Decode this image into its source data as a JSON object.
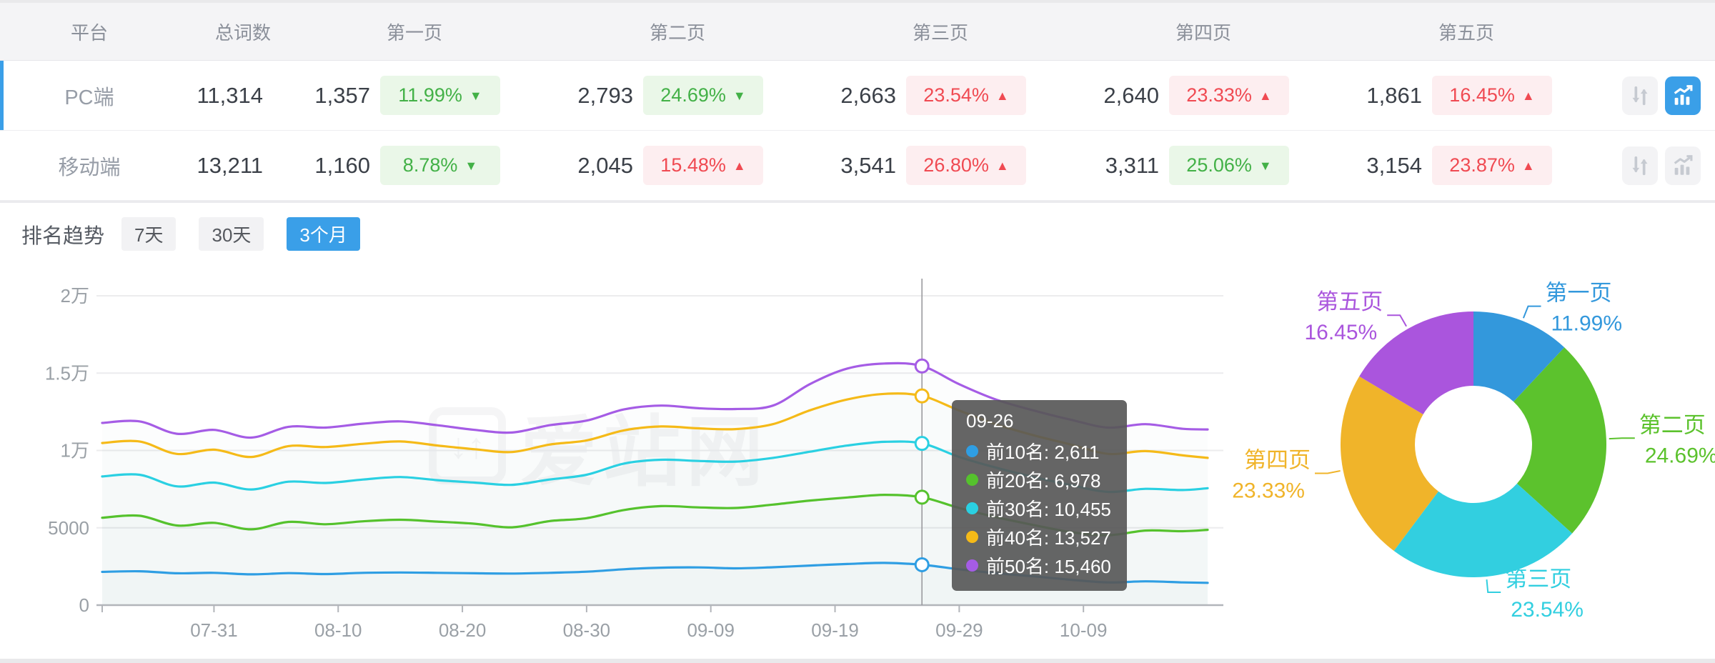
{
  "page": {
    "watermark": "爱站网"
  },
  "table": {
    "headers": [
      "平台",
      "总词数",
      "第一页",
      "第二页",
      "第三页",
      "第四页",
      "第五页"
    ],
    "rows": [
      {
        "platform": "PC端",
        "total": "11,314",
        "selected": true,
        "pages": [
          {
            "count": "1,357",
            "pct": "11.99%",
            "dir": "down"
          },
          {
            "count": "2,793",
            "pct": "24.69%",
            "dir": "down"
          },
          {
            "count": "2,663",
            "pct": "23.54%",
            "dir": "up"
          },
          {
            "count": "2,640",
            "pct": "23.33%",
            "dir": "up"
          },
          {
            "count": "1,861",
            "pct": "16.45%",
            "dir": "up"
          }
        ]
      },
      {
        "platform": "移动端",
        "total": "13,211",
        "selected": false,
        "pages": [
          {
            "count": "1,160",
            "pct": "8.78%",
            "dir": "down"
          },
          {
            "count": "2,045",
            "pct": "15.48%",
            "dir": "up"
          },
          {
            "count": "3,541",
            "pct": "26.80%",
            "dir": "up"
          },
          {
            "count": "3,311",
            "pct": "25.06%",
            "dir": "down"
          },
          {
            "count": "3,154",
            "pct": "23.87%",
            "dir": "up"
          }
        ]
      }
    ]
  },
  "trend": {
    "title": "排名趋势",
    "tabs": [
      {
        "label": "7天",
        "active": false
      },
      {
        "label": "30天",
        "active": false
      },
      {
        "label": "3个月",
        "active": true
      }
    ]
  },
  "colors": {
    "accent": "#3a9fe8",
    "up_red": "#f04a52",
    "up_red_bg": "#fdeef0",
    "down_green": "#43b147",
    "down_green_bg": "#eaf7e8",
    "axis_text": "#9aa0a6",
    "grid": "#ececee",
    "axis_line": "#b2b5ba",
    "tooltip_bg": "rgba(88,88,88,0.92)"
  },
  "tooltip": {
    "title": "09-26",
    "items": [
      {
        "name": "前10名",
        "value": "2,611",
        "color": "#2f9ee3"
      },
      {
        "name": "前20名",
        "value": "6,978",
        "color": "#55c22d"
      },
      {
        "name": "前30名",
        "value": "10,455",
        "color": "#2ad0e2"
      },
      {
        "name": "前40名",
        "value": "13,527",
        "color": "#f5ba18"
      },
      {
        "name": "前50名",
        "value": "15,460",
        "color": "#a55ce5"
      }
    ]
  },
  "chart_data": [
    {
      "type": "line",
      "title": "排名趋势（3个月）",
      "x_start_date": "07-22",
      "xlim_days": [
        0,
        89
      ],
      "x_tick_days": [
        9,
        19,
        29,
        39,
        49,
        59,
        69,
        79
      ],
      "x_tick_labels": [
        "07-31",
        "08-10",
        "08-20",
        "08-30",
        "09-09",
        "09-19",
        "09-29",
        "10-09"
      ],
      "ylim": [
        0,
        20000
      ],
      "y_tick_values": [
        0,
        5000,
        10000,
        15000,
        20000
      ],
      "y_tick_labels": [
        "0",
        "5000",
        "1万",
        "1.5万",
        "2万"
      ],
      "grid": true,
      "legend_position": "none",
      "sample_days": [
        0,
        3,
        6,
        9,
        12,
        15,
        18,
        21,
        24,
        27,
        30,
        33,
        36,
        39,
        42,
        45,
        48,
        51,
        54,
        57,
        60,
        63,
        66,
        69,
        72,
        75,
        78,
        81,
        84,
        87,
        89
      ],
      "series": [
        {
          "name": "前10名",
          "color": "#2f9ee3",
          "values": [
            2150,
            2190,
            2060,
            2090,
            1990,
            2070,
            2010,
            2090,
            2110,
            2090,
            2060,
            2040,
            2090,
            2160,
            2320,
            2420,
            2440,
            2380,
            2450,
            2560,
            2660,
            2730,
            2611,
            2320,
            2060,
            1860,
            1640,
            1470,
            1540,
            1470,
            1440
          ]
        },
        {
          "name": "前20名",
          "color": "#55c22d",
          "values": [
            5650,
            5780,
            5150,
            5320,
            4900,
            5380,
            5230,
            5420,
            5520,
            5400,
            5260,
            5030,
            5430,
            5620,
            6150,
            6400,
            6320,
            6280,
            6500,
            6760,
            6960,
            7130,
            6978,
            6280,
            5680,
            5180,
            4720,
            4520,
            4820,
            4780,
            4870
          ]
        },
        {
          "name": "前30名",
          "color": "#2ad0e2",
          "values": [
            8320,
            8430,
            7680,
            7920,
            7480,
            7980,
            7900,
            8120,
            8280,
            8080,
            7920,
            7780,
            8120,
            8430,
            9150,
            9400,
            9320,
            9280,
            9520,
            9920,
            10320,
            10560,
            10455,
            9580,
            8880,
            8280,
            7760,
            7320,
            7520,
            7440,
            7560
          ]
        },
        {
          "name": "前40名",
          "color": "#f5ba18",
          "values": [
            10480,
            10580,
            9780,
            10050,
            9580,
            10280,
            10220,
            10430,
            10580,
            10320,
            10080,
            9900,
            10380,
            10650,
            11300,
            11550,
            11430,
            11380,
            11700,
            12600,
            13300,
            13660,
            13527,
            12580,
            11680,
            10980,
            10380,
            9780,
            9960,
            9680,
            9520
          ]
        },
        {
          "name": "前50名",
          "color": "#a55ce5",
          "values": [
            11780,
            11880,
            11080,
            11330,
            10830,
            11530,
            11480,
            11730,
            11880,
            11630,
            11330,
            11160,
            11630,
            11930,
            12650,
            12900,
            12730,
            12680,
            12900,
            14300,
            15300,
            15620,
            15460,
            14280,
            13280,
            12580,
            11980,
            11480,
            11700,
            11400,
            11360
          ]
        }
      ],
      "crosshair": {
        "day": 66,
        "date": "09-26",
        "values": [
          2611,
          6978,
          10455,
          13527,
          15460
        ]
      }
    },
    {
      "type": "pie",
      "donut": true,
      "categories": [
        "第一页",
        "第二页",
        "第三页",
        "第四页",
        "第五页"
      ],
      "values": [
        11.99,
        24.69,
        23.54,
        23.33,
        16.45
      ],
      "unit": "%",
      "colors": [
        "#3398dc",
        "#5cc22d",
        "#32cfe0",
        "#f0b42a",
        "#aa55dd"
      ],
      "start_angle_deg": 0,
      "clockwise": true,
      "legend_position": "callout-labels"
    }
  ]
}
